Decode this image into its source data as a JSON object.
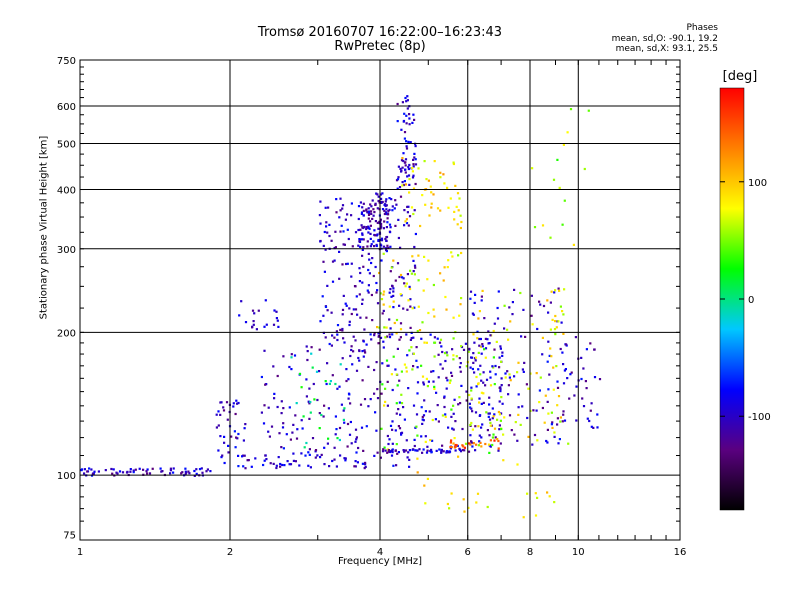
{
  "chart_data": {
    "type": "scatter",
    "title": "Tromsø 20160707 16:22:00–16:23:43",
    "subtitle": "RwPretec (8p)",
    "xlabel": "Frequency [MHz]",
    "ylabel": "Stationary phase Virtual Height [km]",
    "x_scale": "log",
    "y_scale": "log",
    "xlim": [
      1,
      16
    ],
    "ylim": [
      73,
      750
    ],
    "x_ticks": [
      1,
      2,
      4,
      6,
      8,
      10,
      16
    ],
    "x_tick_labels": [
      "1",
      "2",
      "4",
      "6",
      "8",
      "10",
      "16"
    ],
    "y_ticks": [
      75,
      100,
      200,
      300,
      400,
      500,
      600,
      750
    ],
    "y_tick_labels": [
      "75",
      "100",
      "200",
      "300",
      "400",
      "500",
      "600",
      "750"
    ],
    "grid": true,
    "legend": {
      "title": "Phases",
      "lines": [
        "mean, sd,O: -90.1, 19.2",
        "mean, sd,X:  93.1, 25.5"
      ],
      "placement": "top-right"
    },
    "colorbar": {
      "label": "[deg]",
      "range": [
        -180,
        180
      ],
      "ticks": [
        100,
        0,
        -100
      ],
      "tick_labels": [
        "100",
        "0",
        "-100"
      ],
      "colors": [
        "#000000",
        "#5a0080",
        "#0000ff",
        "#00c8ff",
        "#00ff00",
        "#ffff00",
        "#ff8000",
        "#ff0000"
      ]
    },
    "clusters": [
      {
        "x": [
          1.0,
          1.85
        ],
        "y": [
          100,
          104
        ],
        "phase": -100,
        "count": 70
      },
      {
        "x": [
          1.85,
          2.15
        ],
        "y": [
          106,
          145
        ],
        "phase": -100,
        "count": 40
      },
      {
        "x": [
          2.0,
          2.5
        ],
        "y": [
          203,
          238
        ],
        "phase": -100,
        "count": 20
      },
      {
        "x": [
          2.0,
          4.6
        ],
        "y": [
          104,
          112
        ],
        "phase": -100,
        "count": 60
      },
      {
        "x": [
          2.3,
          3.6
        ],
        "y": [
          110,
          190
        ],
        "phase": -100,
        "count": 110
      },
      {
        "x": [
          2.6,
          3.4
        ],
        "y": [
          115,
          185
        ],
        "phase": 10,
        "count": 25
      },
      {
        "x": [
          3.0,
          4.7
        ],
        "y": [
          190,
          390
        ],
        "phase": -100,
        "count": 220
      },
      {
        "x": [
          3.6,
          4.2
        ],
        "y": [
          300,
          395
        ],
        "phase": -100,
        "count": 120
      },
      {
        "x": [
          4.3,
          4.7
        ],
        "y": [
          400,
          640
        ],
        "phase": -100,
        "count": 70
      },
      {
        "x": [
          4.4,
          5.8
        ],
        "y": [
          330,
          470
        ],
        "phase": 90,
        "count": 50
      },
      {
        "x": [
          3.9,
          5.8
        ],
        "y": [
          200,
          300
        ],
        "phase": 80,
        "count": 60
      },
      {
        "x": [
          3.6,
          7.0
        ],
        "y": [
          112,
          200
        ],
        "phase": -100,
        "count": 220
      },
      {
        "x": [
          4.0,
          7.0
        ],
        "y": [
          112,
          200
        ],
        "phase": 60,
        "count": 90
      },
      {
        "x": [
          5.5,
          7.0
        ],
        "y": [
          114,
          120
        ],
        "phase": 140,
        "count": 25
      },
      {
        "x": [
          4.0,
          6.2
        ],
        "y": [
          112,
          114
        ],
        "phase": -100,
        "count": 50
      },
      {
        "x": [
          6.0,
          9.5
        ],
        "y": [
          115,
          250
        ],
        "phase": -100,
        "count": 120
      },
      {
        "x": [
          6.0,
          9.5
        ],
        "y": [
          115,
          250
        ],
        "phase": 80,
        "count": 80
      },
      {
        "x": [
          9.0,
          11.0
        ],
        "y": [
          125,
          200
        ],
        "phase": -100,
        "count": 40
      },
      {
        "x": [
          4.6,
          9.0
        ],
        "y": [
          80,
          110
        ],
        "phase": 90,
        "count": 25
      },
      {
        "x": [
          8.0,
          10.5
        ],
        "y": [
          300,
          600
        ],
        "phase": 60,
        "count": 15
      }
    ]
  }
}
